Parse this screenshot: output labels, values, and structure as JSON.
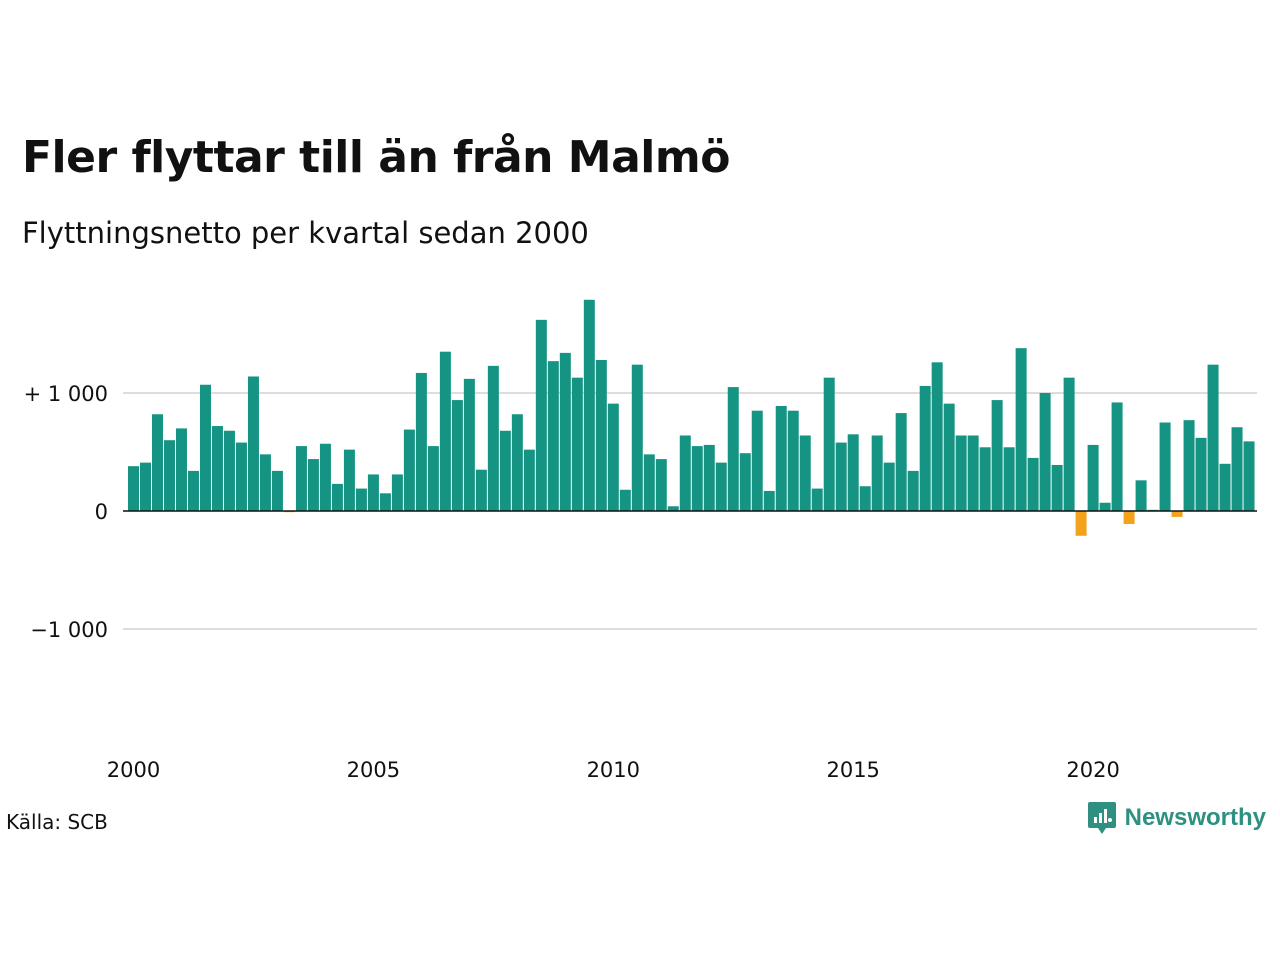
{
  "title": "Fler flyttar till än från Malmö",
  "subtitle": "Flyttningsnetto per kvartal sedan 2000",
  "source": "Källa: SCB",
  "brand": {
    "name": "Newsworthy",
    "icon": "newsworthy-logo-icon",
    "color": "#2e9080"
  },
  "colors": {
    "positive": "#169483",
    "negative": "#f3a21b",
    "grid": "#dddddd",
    "zero_line": "#111111"
  },
  "chart_data": {
    "type": "bar",
    "title": "Fler flyttar till än från Malmö",
    "subtitle": "Flyttningsnetto per kvartal sedan 2000",
    "xlabel": "",
    "ylabel": "",
    "ylim": [
      -1700,
      1800
    ],
    "grid": true,
    "legend": "none",
    "y_ticks": [
      {
        "value": 1000,
        "label": "+ 1 000"
      },
      {
        "value": 0,
        "label": "0"
      },
      {
        "value": -1000,
        "label": "−1 000"
      }
    ],
    "x_ticks": [
      "2000",
      "2005",
      "2010",
      "2015",
      "2020"
    ],
    "x_tick_years": [
      2000,
      2005,
      2010,
      2015,
      2020
    ],
    "start_year": 2000,
    "values": [
      380,
      410,
      820,
      600,
      700,
      340,
      1070,
      720,
      680,
      580,
      1140,
      480,
      340,
      -10,
      550,
      440,
      570,
      230,
      520,
      190,
      310,
      150,
      310,
      690,
      1170,
      550,
      1350,
      940,
      1120,
      350,
      1230,
      680,
      820,
      520,
      1620,
      1270,
      1340,
      1130,
      1790,
      1280,
      910,
      180,
      1240,
      480,
      440,
      40,
      640,
      550,
      560,
      410,
      1050,
      490,
      850,
      170,
      890,
      850,
      640,
      190,
      1130,
      580,
      650,
      210,
      640,
      410,
      830,
      340,
      1060,
      1260,
      910,
      640,
      640,
      540,
      940,
      540,
      1380,
      450,
      1000,
      390,
      1130,
      -210,
      560,
      70,
      920,
      -110,
      260,
      10,
      750,
      -50,
      770,
      620,
      1240,
      400,
      710,
      590
    ]
  }
}
